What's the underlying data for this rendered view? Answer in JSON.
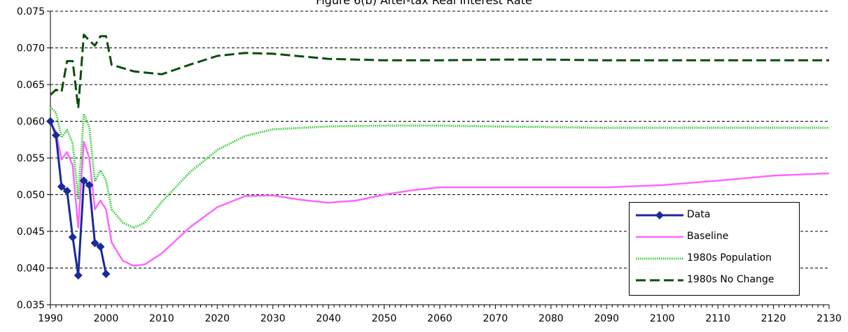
{
  "chart_data": {
    "type": "line",
    "title": "Figure 6(b) After-tax Real Interest Rate",
    "xlabel": "",
    "ylabel": "",
    "xlim": [
      1990,
      2130
    ],
    "ylim": [
      0.035,
      0.075
    ],
    "x_ticks": [
      "1990",
      "2000",
      "2010",
      "2020",
      "2030",
      "2040",
      "2050",
      "2060",
      "2070",
      "2080",
      "2090",
      "2100",
      "2110",
      "2120",
      "2130"
    ],
    "y_ticks": [
      "0.035",
      "0.040",
      "0.045",
      "0.050",
      "0.055",
      "0.060",
      "0.065",
      "0.070",
      "0.075"
    ],
    "grid": "horizontal dashed",
    "legend_position": "bottom-right",
    "series": [
      {
        "name": "Data",
        "color": "#1a2a9a",
        "style": "solid-markers",
        "points": [
          [
            1990,
            0.06
          ],
          [
            1991,
            0.0581
          ],
          [
            1992,
            0.0511
          ],
          [
            1993,
            0.0505
          ],
          [
            1994,
            0.0442
          ],
          [
            1995,
            0.039
          ],
          [
            1996,
            0.0519
          ],
          [
            1997,
            0.0513
          ],
          [
            1998,
            0.0434
          ],
          [
            1999,
            0.0429
          ],
          [
            2000,
            0.0392
          ]
        ]
      },
      {
        "name": "Baseline",
        "color": "#ff66ff",
        "style": "solid",
        "points": [
          [
            1990,
            0.06
          ],
          [
            1991,
            0.0585
          ],
          [
            1992,
            0.0548
          ],
          [
            1993,
            0.0558
          ],
          [
            1994,
            0.054
          ],
          [
            1995,
            0.0455
          ],
          [
            1996,
            0.0572
          ],
          [
            1997,
            0.055
          ],
          [
            1998,
            0.048
          ],
          [
            1999,
            0.0492
          ],
          [
            2000,
            0.048
          ],
          [
            2001,
            0.0435
          ],
          [
            2003,
            0.041
          ],
          [
            2005,
            0.0403
          ],
          [
            2007,
            0.0405
          ],
          [
            2010,
            0.042
          ],
          [
            2015,
            0.0455
          ],
          [
            2020,
            0.0483
          ],
          [
            2025,
            0.0498
          ],
          [
            2030,
            0.0499
          ],
          [
            2035,
            0.0493
          ],
          [
            2040,
            0.0489
          ],
          [
            2045,
            0.0492
          ],
          [
            2050,
            0.05
          ],
          [
            2055,
            0.0506
          ],
          [
            2060,
            0.051
          ],
          [
            2070,
            0.051
          ],
          [
            2080,
            0.051
          ],
          [
            2090,
            0.051
          ],
          [
            2100,
            0.0513
          ],
          [
            2110,
            0.0519
          ],
          [
            2120,
            0.0526
          ],
          [
            2130,
            0.0529
          ]
        ]
      },
      {
        "name": "1980s Population",
        "color": "#33cc33",
        "style": "dotted",
        "points": [
          [
            1990,
            0.0619
          ],
          [
            1991,
            0.0612
          ],
          [
            1992,
            0.0578
          ],
          [
            1993,
            0.0588
          ],
          [
            1994,
            0.057
          ],
          [
            1995,
            0.0495
          ],
          [
            1996,
            0.061
          ],
          [
            1997,
            0.0592
          ],
          [
            1998,
            0.0518
          ],
          [
            1999,
            0.0533
          ],
          [
            2000,
            0.052
          ],
          [
            2001,
            0.048
          ],
          [
            2003,
            0.0462
          ],
          [
            2005,
            0.0455
          ],
          [
            2007,
            0.0462
          ],
          [
            2010,
            0.049
          ],
          [
            2015,
            0.053
          ],
          [
            2020,
            0.0561
          ],
          [
            2025,
            0.058
          ],
          [
            2030,
            0.0589
          ],
          [
            2040,
            0.0593
          ],
          [
            2050,
            0.0594
          ],
          [
            2060,
            0.0594
          ],
          [
            2070,
            0.0593
          ],
          [
            2080,
            0.0592
          ],
          [
            2090,
            0.0591
          ],
          [
            2100,
            0.0591
          ],
          [
            2110,
            0.0591
          ],
          [
            2120,
            0.0591
          ],
          [
            2130,
            0.0591
          ]
        ]
      },
      {
        "name": "1980s No Change",
        "color": "#0b4d0b",
        "style": "dashed",
        "points": [
          [
            1990,
            0.0636
          ],
          [
            1991,
            0.0643
          ],
          [
            1992,
            0.064
          ],
          [
            1993,
            0.0682
          ],
          [
            1994,
            0.0682
          ],
          [
            1995,
            0.0618
          ],
          [
            1996,
            0.0718
          ],
          [
            1997,
            0.071
          ],
          [
            1998,
            0.0703
          ],
          [
            1999,
            0.0716
          ],
          [
            2000,
            0.0716
          ],
          [
            2001,
            0.0677
          ],
          [
            2005,
            0.0668
          ],
          [
            2010,
            0.0664
          ],
          [
            2015,
            0.0677
          ],
          [
            2020,
            0.0689
          ],
          [
            2025,
            0.0693
          ],
          [
            2030,
            0.0692
          ],
          [
            2040,
            0.0685
          ],
          [
            2050,
            0.0683
          ],
          [
            2060,
            0.0683
          ],
          [
            2070,
            0.0684
          ],
          [
            2080,
            0.0684
          ],
          [
            2090,
            0.0683
          ],
          [
            2100,
            0.0683
          ],
          [
            2110,
            0.0683
          ],
          [
            2120,
            0.0683
          ],
          [
            2130,
            0.0683
          ]
        ]
      }
    ]
  }
}
